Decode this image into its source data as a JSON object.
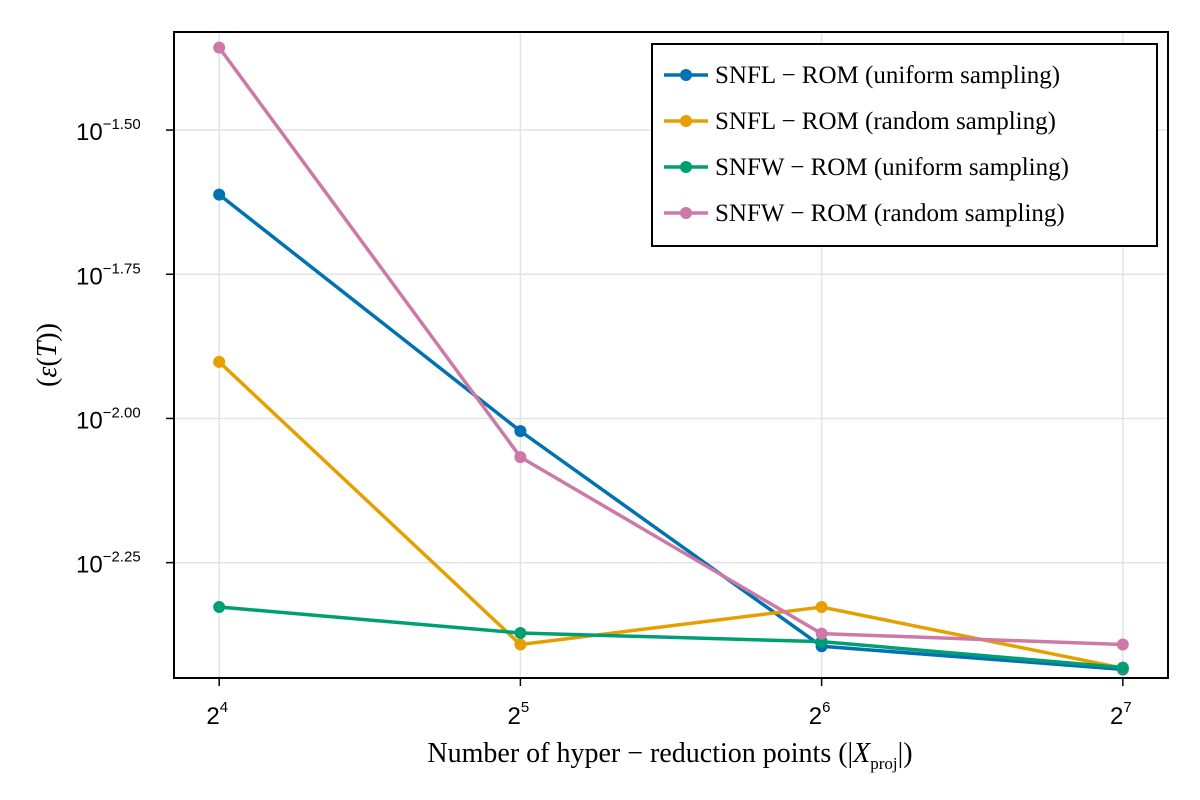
{
  "chart_data": {
    "type": "line",
    "title": "",
    "xlabel": "Number of hyper − reduction points (|X_proj|)",
    "xlabel_parts": {
      "prefix": "Number of hyper − reduction points (|",
      "var": "X",
      "sub": "proj",
      "suffix": "|)"
    },
    "ylabel": "(ε(T))",
    "ylabel_parts": {
      "open": "(",
      "eps": "ε",
      "open2": "(",
      "var": "T",
      "close": "))"
    },
    "x_scale": "log2",
    "y_scale": "log10",
    "x": [
      16,
      32,
      64,
      128
    ],
    "x_ticks": [
      {
        "value": 16,
        "base": "2",
        "exp": "4"
      },
      {
        "value": 32,
        "base": "2",
        "exp": "5"
      },
      {
        "value": 64,
        "base": "2",
        "exp": "6"
      },
      {
        "value": 128,
        "base": "2",
        "exp": "7"
      }
    ],
    "y_ticks": [
      {
        "log": -1.5,
        "base": "10",
        "exp": "−1.50"
      },
      {
        "log": -1.75,
        "base": "10",
        "exp": "−1.75"
      },
      {
        "log": -2.0,
        "base": "10",
        "exp": "−2.00"
      },
      {
        "log": -2.25,
        "base": "10",
        "exp": "−2.25"
      }
    ],
    "xlim_log2": [
      3.85,
      7.15
    ],
    "ylim_log10": [
      -2.45,
      -1.33
    ],
    "grid": true,
    "legend_position": "top-right",
    "series": [
      {
        "name": "SNFL − ROM (uniform sampling)",
        "color": "#0072B2",
        "log_values": [
          -1.612,
          -2.022,
          -2.395,
          -2.435
        ],
        "values": [
          0.0244,
          0.0095,
          0.004,
          0.0037
        ]
      },
      {
        "name": "SNFL − ROM (random sampling)",
        "color": "#E69F00",
        "log_values": [
          -1.902,
          -2.392,
          -2.327,
          -2.433
        ],
        "values": [
          0.0125,
          0.0041,
          0.0047,
          0.0037
        ]
      },
      {
        "name": "SNFW − ROM (uniform sampling)",
        "color": "#009E73",
        "log_values": [
          -2.327,
          -2.372,
          -2.387,
          -2.432
        ],
        "values": [
          0.0047,
          0.0042,
          0.0041,
          0.0037
        ]
      },
      {
        "name": "SNFW − ROM (random sampling)",
        "color": "#CC79A7",
        "log_values": [
          -1.357,
          -2.067,
          -2.373,
          -2.392
        ],
        "values": [
          0.044,
          0.0086,
          0.0042,
          0.0041
        ]
      }
    ]
  }
}
